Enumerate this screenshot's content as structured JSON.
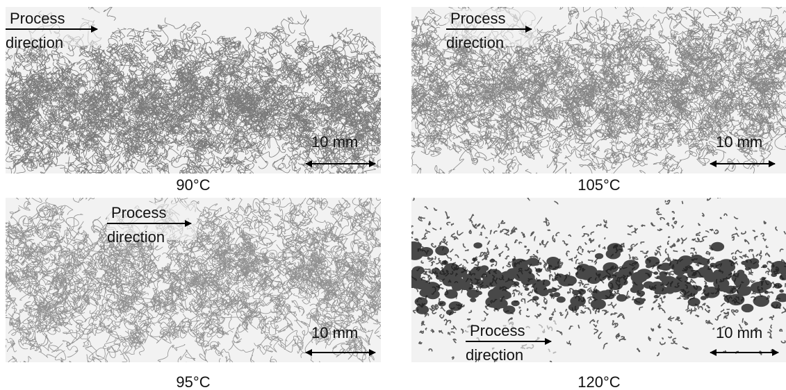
{
  "panels": [
    {
      "caption": "90°C",
      "process": [
        "Process",
        "direction"
      ],
      "scale": "10 mm"
    },
    {
      "caption": "105°C",
      "process": [
        "Process",
        "direction"
      ],
      "scale": "10 mm"
    },
    {
      "caption": "95°C",
      "process": [
        "Process",
        "direction"
      ],
      "scale": "10 mm"
    },
    {
      "caption": "120°C",
      "process": [
        "Process",
        "direction"
      ],
      "scale": "10 mm"
    }
  ]
}
